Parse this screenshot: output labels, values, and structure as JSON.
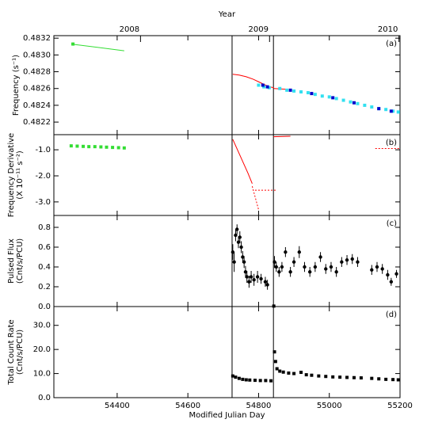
{
  "chart_data": [
    {
      "type": "scatter",
      "label": "(a)",
      "ylabel": [
        "Frequency (s⁻¹)"
      ],
      "ylim": [
        0.48205,
        0.48323
      ],
      "yticks": [
        0.4822,
        0.4824,
        0.4826,
        0.4828,
        {
          "value": 0.483,
          "label": "0.4830"
        },
        0.4832
      ],
      "x2label": "Year",
      "x2ticks": [
        {
          "value": 54466,
          "label": "2008"
        },
        {
          "value": 54831,
          "label": "2009"
        },
        {
          "value": 55197,
          "label": "2010"
        }
      ],
      "vlines": [
        54725,
        54842
      ],
      "series": [
        {
          "color": "#33dd33",
          "line": true,
          "x": [
            54270,
            54420
          ],
          "values": [
            0.48313,
            0.48305
          ]
        },
        {
          "color": "#33dd33",
          "marker": "square",
          "x": [
            54275
          ],
          "values": [
            0.48313
          ]
        },
        {
          "color": "#ff0000",
          "line": true,
          "x": [
            54727,
            54745,
            54765,
            54785,
            54800,
            54815,
            54830,
            54843
          ],
          "values": [
            0.48277,
            0.48276,
            0.48274,
            0.48271,
            0.48268,
            0.48265,
            0.48262,
            0.48261
          ]
        },
        {
          "color": "#ff0000",
          "line": true,
          "x": [
            54843,
            54880
          ],
          "values": [
            0.4826,
            0.48259
          ]
        },
        {
          "color": "#33e0f0",
          "marker": "square",
          "x": [
            54800,
            54815,
            54830,
            54860,
            54880,
            54900,
            54920,
            54940,
            54960,
            54980,
            55000,
            55020,
            55040,
            55060,
            55080,
            55100,
            55120,
            55140,
            55160,
            55180,
            55195
          ],
          "values": [
            0.48264,
            0.48262,
            0.48261,
            0.4826,
            0.48258,
            0.48257,
            0.48256,
            0.48255,
            0.48253,
            0.48251,
            0.4825,
            0.48248,
            0.48246,
            0.48244,
            0.48242,
            0.4824,
            0.48238,
            0.48236,
            0.48235,
            0.48233,
            0.48232
          ]
        },
        {
          "color": "#0000cc",
          "marker": "square",
          "x": [
            54812,
            54825,
            54890,
            54950,
            55010,
            55070,
            55140,
            55175
          ],
          "values": [
            0.48264,
            0.48262,
            0.48258,
            0.48254,
            0.48249,
            0.48243,
            0.48236,
            0.48233
          ]
        }
      ]
    },
    {
      "type": "scatter",
      "label": "(b)",
      "ylabel": [
        "Frequency Derivative",
        "(X 10⁻¹¹ s⁻²)"
      ],
      "ylim": [
        -3.52,
        -0.42
      ],
      "yticks": [
        {
          "value": -3,
          "label": "-3.0"
        },
        {
          "value": -2,
          "label": "-2.0"
        },
        {
          "value": -1,
          "label": "-1.0"
        }
      ],
      "vlines": [
        54725,
        54842
      ],
      "series": [
        {
          "color": "#33dd33",
          "marker": "square",
          "x": [
            54270,
            54287,
            54304,
            54320,
            54337,
            54354,
            54370,
            54387,
            54404,
            54420
          ],
          "values": [
            -0.85,
            -0.86,
            -0.87,
            -0.88,
            -0.88,
            -0.89,
            -0.9,
            -0.91,
            -0.92,
            -0.93
          ]
        },
        {
          "color": "#ff0000",
          "line": true,
          "x": [
            54727,
            54770,
            54782
          ],
          "values": [
            -0.6,
            -1.9,
            -2.3
          ]
        },
        {
          "color": "#ff0000",
          "line": true,
          "dashed": true,
          "x": [
            54782,
            54800
          ],
          "values": [
            -2.4,
            -3.3
          ]
        },
        {
          "color": "#ff0000",
          "line": true,
          "dashed": true,
          "x": [
            54790,
            54850
          ],
          "values": [
            -2.55,
            -2.55
          ]
        },
        {
          "color": "#ff0000",
          "line": true,
          "x": [
            54842,
            54890
          ],
          "values": [
            -0.5,
            -0.48
          ]
        },
        {
          "color": "#ff0000",
          "line": true,
          "dashed": true,
          "x": [
            55130,
            55200
          ],
          "values": [
            -0.95,
            -0.95
          ]
        }
      ]
    },
    {
      "type": "scatter",
      "label": "(c)",
      "ylabel": [
        "Pulsed Flux",
        "(Cnt/s/PCU)"
      ],
      "ylim": [
        0,
        0.92
      ],
      "yticks": [
        {
          "value": 0,
          "label": "0.0"
        },
        0.2,
        0.4,
        0.6,
        0.8
      ],
      "vlines": [
        54725,
        54842
      ],
      "series": [
        {
          "color": "#000000",
          "marker": "circle",
          "x": [
            54727,
            54731,
            54735,
            54739,
            54743,
            54747,
            54751,
            54755,
            54759,
            54763,
            54767,
            54773,
            54779,
            54787,
            54797,
            54807,
            54819,
            54825,
            54845,
            54850,
            54858,
            54866,
            54876,
            54890,
            54900,
            54915,
            54930,
            54945,
            54960,
            54975,
            54990,
            55005,
            55020,
            55035,
            55050,
            55065,
            55080,
            55120,
            55135,
            55150,
            55165,
            55175,
            55190
          ],
          "values": [
            0.55,
            0.45,
            0.72,
            0.78,
            0.65,
            0.7,
            0.6,
            0.5,
            0.45,
            0.35,
            0.3,
            0.25,
            0.3,
            0.27,
            0.3,
            0.28,
            0.25,
            0.22,
            0.45,
            0.4,
            0.35,
            0.4,
            0.55,
            0.35,
            0.45,
            0.55,
            0.4,
            0.35,
            0.4,
            0.5,
            0.38,
            0.4,
            0.35,
            0.45,
            0.47,
            0.48,
            0.45,
            0.37,
            0.4,
            0.38,
            0.32,
            0.25,
            0.33
          ],
          "errors": [
            0.08,
            0.1,
            0.06,
            0.05,
            0.06,
            0.06,
            0.06,
            0.06,
            0.06,
            0.06,
            0.06,
            0.06,
            0.06,
            0.06,
            0.06,
            0.05,
            0.05,
            0.05,
            0.06,
            0.05,
            0.05,
            0.05,
            0.05,
            0.05,
            0.05,
            0.06,
            0.05,
            0.05,
            0.05,
            0.05,
            0.05,
            0.05,
            0.05,
            0.05,
            0.05,
            0.05,
            0.05,
            0.05,
            0.05,
            0.05,
            0.05,
            0.04,
            0.04
          ]
        }
      ]
    },
    {
      "type": "scatter",
      "label": "(d)",
      "ylabel": [
        "Total Count Rate",
        "(Cnt/s/PCU)"
      ],
      "ylim": [
        0,
        37.8
      ],
      "yticks": [
        {
          "value": 0,
          "label": "0.0"
        },
        {
          "value": 10,
          "label": "10.0"
        },
        {
          "value": 20,
          "label": "20.0"
        },
        {
          "value": 30,
          "label": "30.0"
        }
      ],
      "xlabel": "Modified Julian Day",
      "xlim": [
        54221,
        55200
      ],
      "xticks": [
        54400,
        54600,
        54800,
        55000,
        55200
      ],
      "vlines": [
        54725,
        54842
      ],
      "series": [
        {
          "color": "#000000",
          "marker": "square",
          "x": [
            54727,
            54735,
            54745,
            54755,
            54765,
            54775,
            54790,
            54805,
            54820,
            54835,
            54843,
            54845,
            54848,
            54852,
            54860,
            54870,
            54885,
            54900,
            54920,
            54935,
            54950,
            54970,
            54990,
            55010,
            55030,
            55050,
            55070,
            55090,
            55120,
            55140,
            55160,
            55180,
            55195
          ],
          "values": [
            9,
            8.5,
            8,
            7.6,
            7.4,
            7.3,
            7.2,
            7.1,
            7.1,
            7,
            38,
            19,
            15,
            12,
            11,
            10.6,
            10.2,
            10,
            10.5,
            9.5,
            9.3,
            9,
            8.8,
            8.6,
            8.5,
            8.4,
            8.3,
            8.2,
            8,
            7.8,
            7.6,
            7.5,
            7.4
          ]
        }
      ]
    }
  ]
}
